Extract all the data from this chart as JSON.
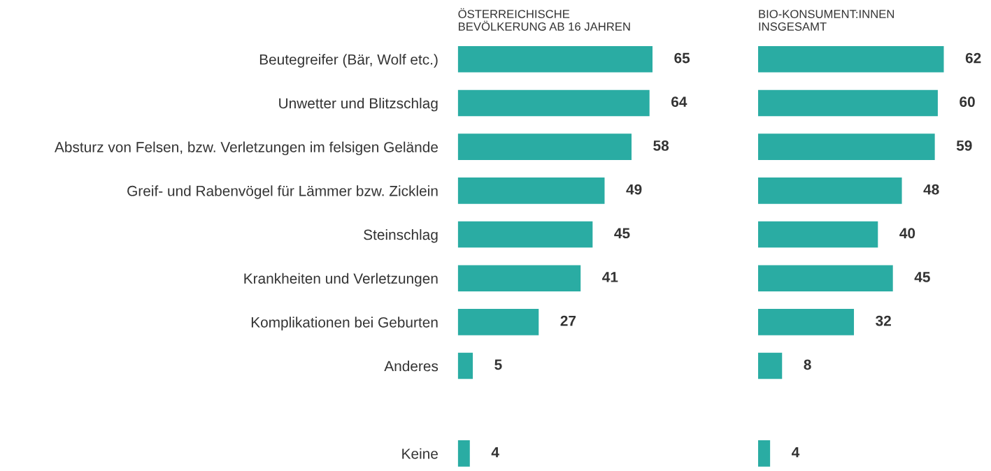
{
  "chart_data": [
    {
      "type": "bar",
      "orientation": "horizontal",
      "title": "ÖSTERREICHISCHE\nBEVÖLKERUNG AB 16 JAHREN",
      "categories": [
        "Beutegreifer (Bär, Wolf etc.)",
        "Unwetter und Blitzschlag",
        "Absturz von Felsen, bzw. Verletzungen im felsigen Gelände",
        "Greif- und Rabenvögel für Lämmer bzw. Zicklein",
        "Steinschlag",
        "Krankheiten und Verletzungen",
        "Komplikationen bei Geburten",
        "Anderes",
        null,
        "Keine"
      ],
      "values": [
        65,
        64,
        58,
        49,
        45,
        41,
        27,
        5,
        null,
        4
      ],
      "color": "#2aaca3",
      "data_labels": true
    },
    {
      "type": "bar",
      "orientation": "horizontal",
      "title": "BIO-KONSUMENT:INNEN\nINSGESAMT",
      "categories": [
        null,
        null,
        null,
        null,
        null,
        null,
        null,
        null,
        null,
        null
      ],
      "values": [
        62,
        60,
        59,
        48,
        40,
        45,
        32,
        8,
        null,
        4
      ],
      "color": "#2aaca3",
      "data_labels": true
    }
  ]
}
